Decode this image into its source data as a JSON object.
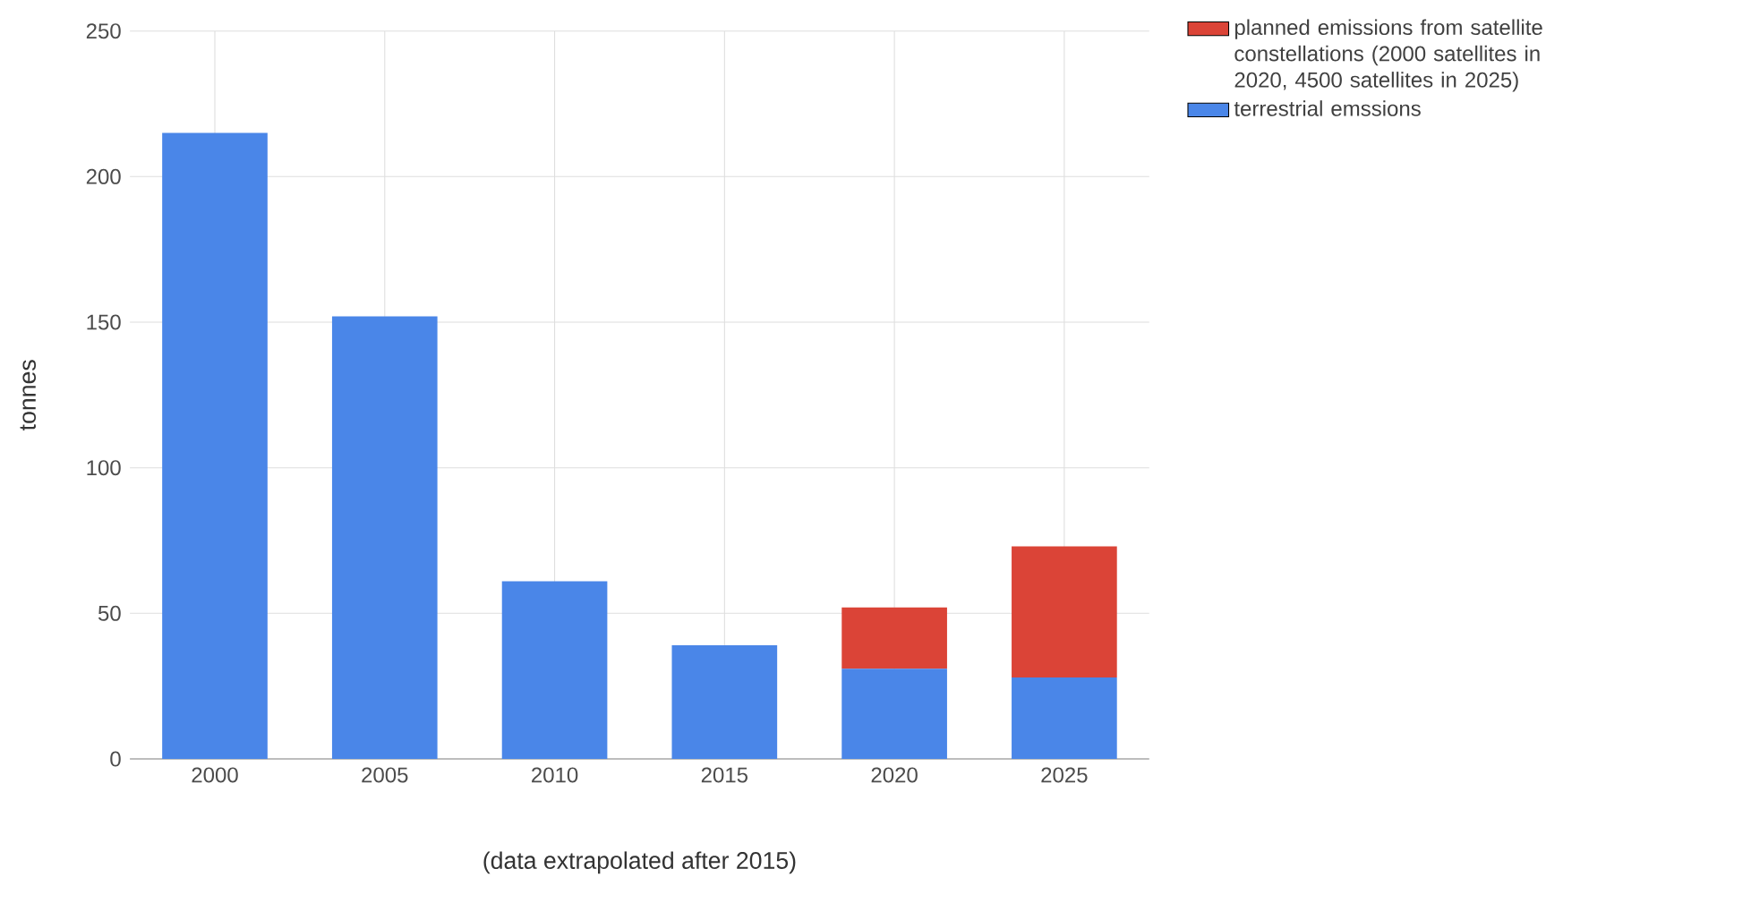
{
  "chart_data": {
    "type": "bar",
    "stacked": true,
    "xlabel": "(data extrapolated after 2015)",
    "ylabel": "tonnes",
    "categories": [
      "2000",
      "2005",
      "2010",
      "2015",
      "2020",
      "2025"
    ],
    "series": [
      {
        "name": "terrestrial emssions",
        "color": "#4a86e8",
        "values": [
          215,
          152,
          61,
          39,
          31,
          28
        ]
      },
      {
        "name": "planned emissions from satellite constellations (2000 satellites in 2020, 4500 satellites in 2025)",
        "color": "#db4437",
        "values": [
          null,
          null,
          null,
          null,
          21,
          45
        ]
      }
    ],
    "ylim": [
      0,
      250
    ],
    "yticks": [
      0,
      50,
      100,
      150,
      200,
      250
    ],
    "grid": true,
    "legend": "right"
  }
}
